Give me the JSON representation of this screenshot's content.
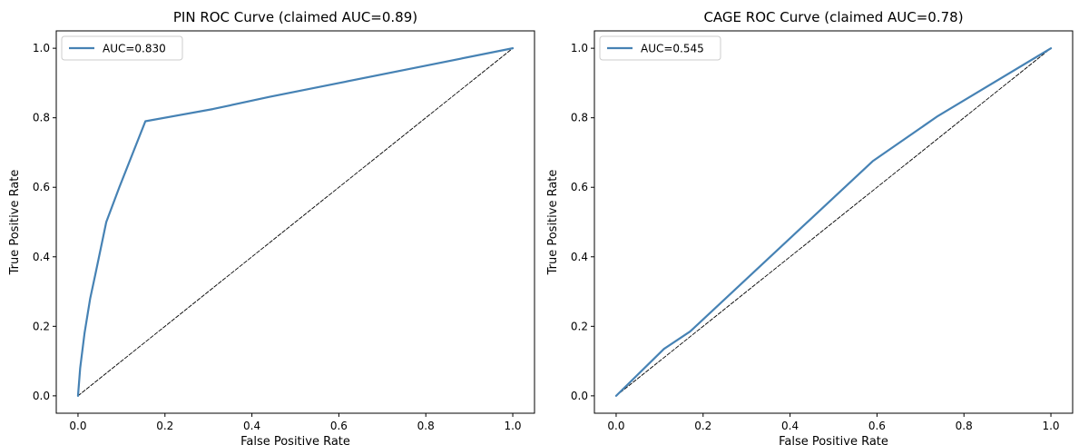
{
  "chart_data": [
    {
      "type": "line",
      "title": "PIN ROC Curve (claimed AUC=0.89)",
      "xlabel": "False Positive Rate",
      "ylabel": "True Positive Rate",
      "xlim": [
        -0.05,
        1.05
      ],
      "ylim": [
        -0.05,
        1.05
      ],
      "xticks": [
        "0.0",
        "0.2",
        "0.4",
        "0.6",
        "0.8",
        "1.0"
      ],
      "yticks": [
        "0.0",
        "0.2",
        "0.4",
        "0.6",
        "0.8",
        "1.0"
      ],
      "grid": false,
      "legend": {
        "placement": "top-left"
      },
      "series": [
        {
          "name": "AUC=0.830",
          "color": "#4682b4",
          "style": "solid",
          "x": [
            0.0,
            0.005,
            0.015,
            0.028,
            0.04,
            0.065,
            0.08,
            0.095,
            0.155,
            0.31,
            0.44,
            0.6,
            0.8,
            1.0
          ],
          "y": [
            0.0,
            0.08,
            0.18,
            0.28,
            0.35,
            0.5,
            0.55,
            0.6,
            0.79,
            0.825,
            0.86,
            0.9,
            0.95,
            1.0
          ]
        },
        {
          "color": "#000000",
          "style": "dashed",
          "x": [
            0.0,
            1.0
          ],
          "y": [
            0.0,
            1.0
          ]
        }
      ]
    },
    {
      "type": "line",
      "title": "CAGE ROC Curve (claimed AUC=0.78)",
      "xlabel": "False Positive Rate",
      "ylabel": "True Positive Rate",
      "xlim": [
        -0.05,
        1.05
      ],
      "ylim": [
        -0.05,
        1.05
      ],
      "xticks": [
        "0.0",
        "0.2",
        "0.4",
        "0.6",
        "0.8",
        "1.0"
      ],
      "yticks": [
        "0.0",
        "0.2",
        "0.4",
        "0.6",
        "0.8",
        "1.0"
      ],
      "grid": false,
      "legend": {
        "placement": "top-left"
      },
      "series": [
        {
          "name": "AUC=0.545",
          "color": "#4682b4",
          "style": "solid",
          "x": [
            0.0,
            0.11,
            0.17,
            0.59,
            0.74,
            1.0
          ],
          "y": [
            0.0,
            0.135,
            0.185,
            0.675,
            0.805,
            1.0
          ]
        },
        {
          "color": "#000000",
          "style": "dashed",
          "x": [
            0.0,
            1.0
          ],
          "y": [
            0.0,
            1.0
          ]
        }
      ]
    }
  ]
}
